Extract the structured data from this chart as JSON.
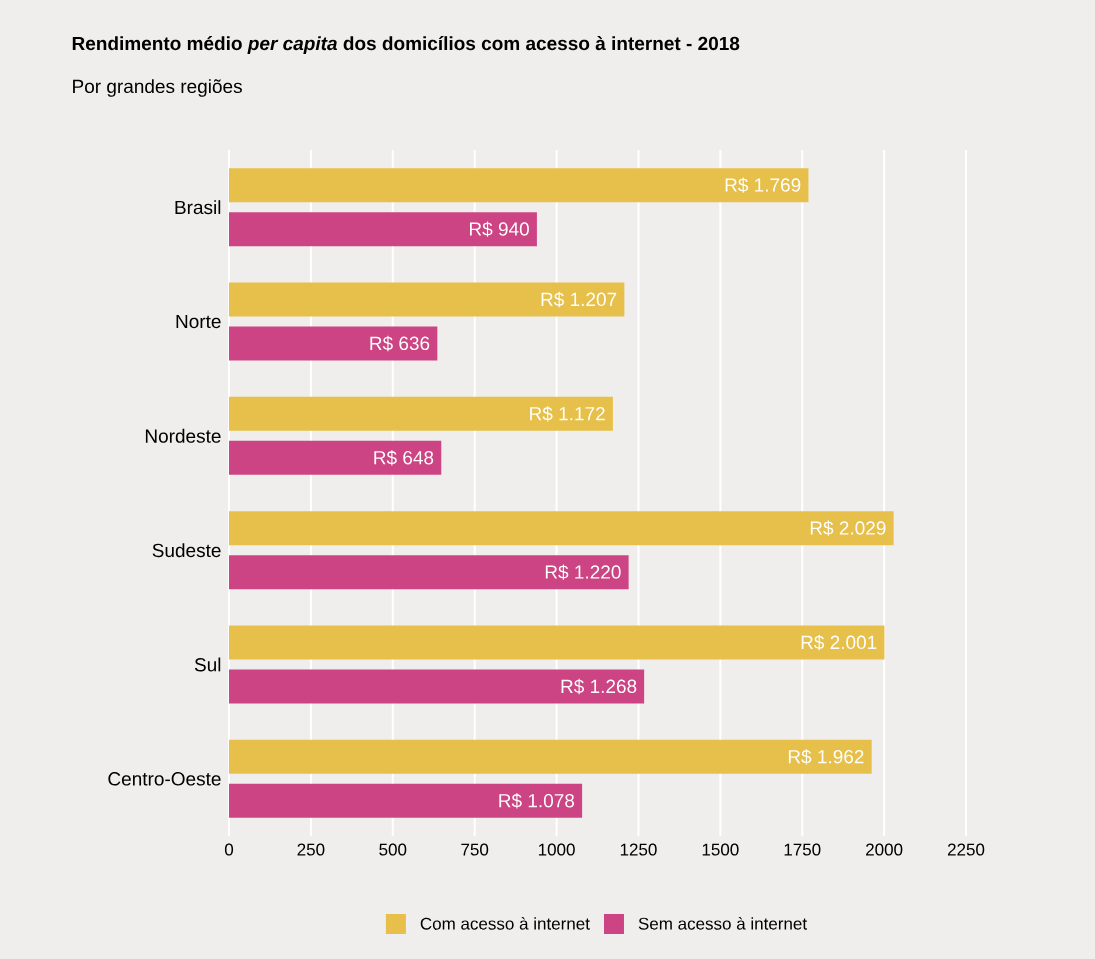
{
  "chart_data": {
    "type": "bar",
    "orientation": "horizontal",
    "title": "Rendimento médio *per capita* dos domicílios com acesso à internet - 2018",
    "subtitle": "Por grandes regiões",
    "categories": [
      "Brasil",
      "Norte",
      "Nordeste",
      "Sudeste",
      "Sul",
      "Centro-Oeste"
    ],
    "series": [
      {
        "name": "Com acesso à internet",
        "color": "#e6c04a",
        "values": [
          1769,
          1207,
          1172,
          2029,
          2001,
          1962
        ],
        "value_labels": [
          "R$ 1.769",
          "R$ 1.207",
          "R$ 1.172",
          "R$ 2.029",
          "R$ 2.001",
          "R$ 1.962"
        ]
      },
      {
        "name": "Sem acesso à internet",
        "color": "#cc4483",
        "values": [
          940,
          636,
          648,
          1220,
          1268,
          1078
        ],
        "value_labels": [
          "R$ 940",
          "R$ 636",
          "R$ 648",
          "R$ 1.220",
          "R$ 1.268",
          "R$ 1.078"
        ]
      }
    ],
    "xlim": [
      0,
      2250
    ],
    "xticks": [
      0,
      250,
      500,
      750,
      1000,
      1250,
      1500,
      1750,
      2000,
      2250
    ],
    "grid": "x",
    "legend": "bottom"
  }
}
